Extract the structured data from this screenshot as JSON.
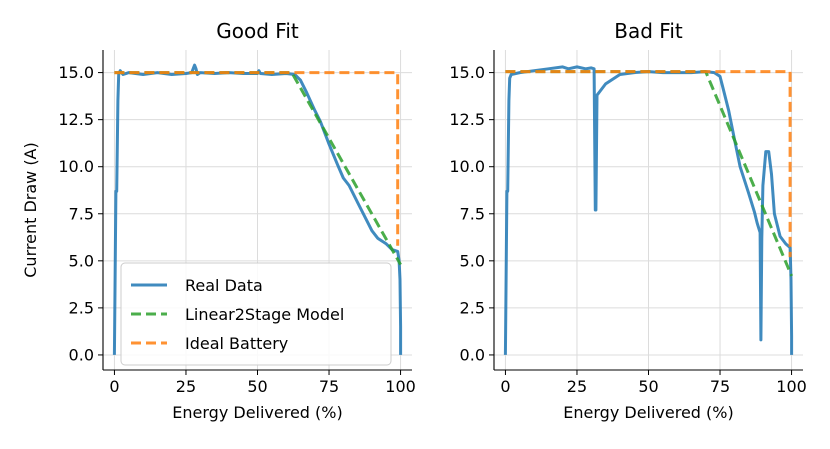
{
  "chart_data": [
    {
      "type": "line",
      "title": "Good Fit",
      "xlabel": "Energy Delivered (%)",
      "ylabel": "Current Draw (A)",
      "xlim": [
        -4,
        104
      ],
      "ylim": [
        -0.8,
        16.2
      ],
      "xticks": [
        0,
        25,
        50,
        75,
        100
      ],
      "xtick_labels": [
        "0",
        "25",
        "50",
        "75",
        "100"
      ],
      "yticks": [
        0.0,
        2.5,
        5.0,
        7.5,
        10.0,
        12.5,
        15.0
      ],
      "ytick_labels": [
        "0.0",
        "2.5",
        "5.0",
        "7.5",
        "10.0",
        "12.5",
        "15.0"
      ],
      "grid": true,
      "legend": "lower-left",
      "series": [
        {
          "name": "Real Data",
          "color": "#1f77b4",
          "style": "solid",
          "x": [
            0,
            0.5,
            0.8,
            1.2,
            1.5,
            2,
            3,
            5,
            10,
            15,
            20,
            25,
            27,
            28,
            28.5,
            29,
            30,
            35,
            40,
            45,
            50,
            50.5,
            51,
            55,
            60,
            63,
            65,
            67,
            70,
            72,
            75,
            78,
            80,
            82,
            85,
            88,
            90,
            92,
            95,
            97,
            99,
            99.5,
            99.8,
            100,
            100
          ],
          "y": [
            0,
            8.7,
            8.7,
            13.5,
            14.9,
            15.1,
            14.9,
            15.0,
            14.9,
            15.0,
            14.9,
            14.95,
            15.0,
            15.4,
            15.2,
            14.9,
            15.0,
            14.95,
            15.0,
            14.95,
            14.95,
            15.1,
            14.95,
            14.9,
            14.95,
            14.9,
            14.6,
            14.0,
            13.0,
            12.4,
            11.2,
            10.1,
            9.4,
            9.0,
            8.1,
            7.2,
            6.6,
            6.2,
            5.9,
            5.6,
            5.5,
            5.0,
            4.0,
            1.5,
            0
          ]
        },
        {
          "name": "Linear2Stage Model",
          "color": "#2ca02c",
          "style": "dashed",
          "x": [
            0,
            62,
            100
          ],
          "y": [
            15.0,
            15.0,
            4.8
          ]
        },
        {
          "name": "Ideal Battery",
          "color": "#ff7f0e",
          "style": "dashed",
          "x": [
            0,
            99,
            99
          ],
          "y": [
            15.0,
            15.0,
            5.8
          ]
        }
      ]
    },
    {
      "type": "line",
      "title": "Bad Fit",
      "xlabel": "Energy Delivered (%)",
      "ylabel": "",
      "xlim": [
        -4,
        104
      ],
      "ylim": [
        -0.8,
        16.2
      ],
      "xticks": [
        0,
        25,
        50,
        75,
        100
      ],
      "xtick_labels": [
        "0",
        "25",
        "50",
        "75",
        "100"
      ],
      "yticks": [
        0.0,
        2.5,
        5.0,
        7.5,
        10.0,
        12.5,
        15.0
      ],
      "ytick_labels": [
        "0.0",
        "2.5",
        "5.0",
        "7.5",
        "10.0",
        "12.5",
        "15.0"
      ],
      "grid": true,
      "series": [
        {
          "name": "Real Data",
          "color": "#1f77b4",
          "style": "solid",
          "x": [
            0,
            0.5,
            0.8,
            1.2,
            1.5,
            2,
            5,
            10,
            15,
            20,
            22,
            25,
            28,
            30,
            31,
            31.4,
            31.6,
            32,
            33,
            35,
            40,
            45,
            50,
            55,
            60,
            65,
            70,
            73,
            75,
            76,
            78,
            80,
            82,
            85,
            87,
            88,
            89,
            89.3,
            89.6,
            90,
            91,
            92,
            93,
            94,
            96,
            98,
            99.5,
            99.8,
            100,
            100
          ],
          "y": [
            0,
            8.7,
            8.7,
            13.5,
            14.7,
            14.9,
            15.0,
            15.1,
            15.2,
            15.3,
            15.2,
            15.3,
            15.2,
            15.25,
            15.2,
            7.7,
            7.7,
            13.8,
            14.0,
            14.4,
            14.9,
            15.0,
            15.05,
            15.0,
            15.0,
            15.0,
            15.05,
            15.0,
            14.8,
            14.2,
            13.0,
            11.5,
            10.0,
            8.6,
            7.6,
            7.0,
            6.5,
            0.8,
            6.2,
            9.0,
            10.8,
            10.8,
            9.6,
            7.5,
            6.3,
            5.9,
            5.7,
            4.0,
            1.0,
            0
          ]
        },
        {
          "name": "Linear2Stage Model",
          "color": "#2ca02c",
          "style": "dashed",
          "x": [
            0,
            70,
            100
          ],
          "y": [
            15.05,
            15.05,
            4.2
          ]
        },
        {
          "name": "Ideal Battery",
          "color": "#ff7f0e",
          "style": "dashed",
          "x": [
            0,
            99.5,
            99.5
          ],
          "y": [
            15.05,
            15.05,
            5.2
          ]
        }
      ]
    }
  ]
}
